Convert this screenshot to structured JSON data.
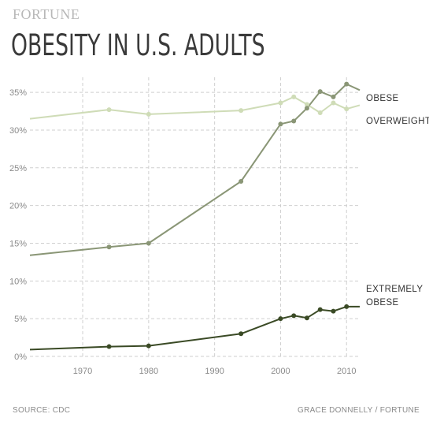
{
  "header": {
    "brand": "FORTUNE",
    "title": "OBESITY IN U.S. ADULTS"
  },
  "footer": {
    "source": "SOURCE: CDC",
    "credit": "GRACE DONNELLY / FORTUNE"
  },
  "chart_data": {
    "type": "line",
    "title": "OBESITY IN U.S. ADULTS",
    "xlabel": "",
    "ylabel": "",
    "xlim": [
      1962,
      2012
    ],
    "ylim": [
      0,
      37
    ],
    "x_ticks": [
      1970,
      1980,
      1990,
      2000,
      2010
    ],
    "y_ticks": [
      0,
      5,
      10,
      15,
      20,
      25,
      30,
      35
    ],
    "y_tick_labels": [
      "0%",
      "5%",
      "10%",
      "15%",
      "20%",
      "25%",
      "30%",
      "35%"
    ],
    "grid": true,
    "series": [
      {
        "name": "OVERWEIGHT",
        "label_lines": [
          "OVERWEIGHT"
        ],
        "color": "#cfdcb7",
        "x": [
          1962,
          1974,
          1980,
          1994,
          2000,
          2002,
          2004,
          2006,
          2008,
          2010,
          2012
        ],
        "values": [
          31.5,
          32.7,
          32.1,
          32.6,
          33.6,
          34.4,
          33.4,
          32.3,
          33.6,
          32.8,
          33.3
        ],
        "markers": [
          false,
          true,
          true,
          true,
          true,
          true,
          true,
          true,
          true,
          true,
          false
        ]
      },
      {
        "name": "OBESE",
        "label_lines": [
          "OBESE"
        ],
        "color": "#8a9676",
        "x": [
          1962,
          1974,
          1980,
          1994,
          2000,
          2002,
          2004,
          2006,
          2008,
          2010,
          2012
        ],
        "values": [
          13.4,
          14.5,
          15.0,
          23.2,
          30.8,
          31.2,
          32.9,
          35.1,
          34.4,
          36.1,
          35.3
        ],
        "markers": [
          false,
          true,
          true,
          true,
          true,
          true,
          true,
          true,
          true,
          true,
          false
        ]
      },
      {
        "name": "EXTREMELY OBESE",
        "label_lines": [
          "EXTREMELY",
          "OBESE"
        ],
        "color": "#3a4a25",
        "x": [
          1962,
          1974,
          1980,
          1994,
          2000,
          2002,
          2004,
          2006,
          2008,
          2010,
          2012
        ],
        "values": [
          0.9,
          1.3,
          1.4,
          3.0,
          5.0,
          5.4,
          5.1,
          6.2,
          6.0,
          6.6,
          6.6
        ],
        "markers": [
          false,
          true,
          true,
          true,
          true,
          true,
          true,
          true,
          true,
          true,
          false
        ]
      }
    ]
  }
}
